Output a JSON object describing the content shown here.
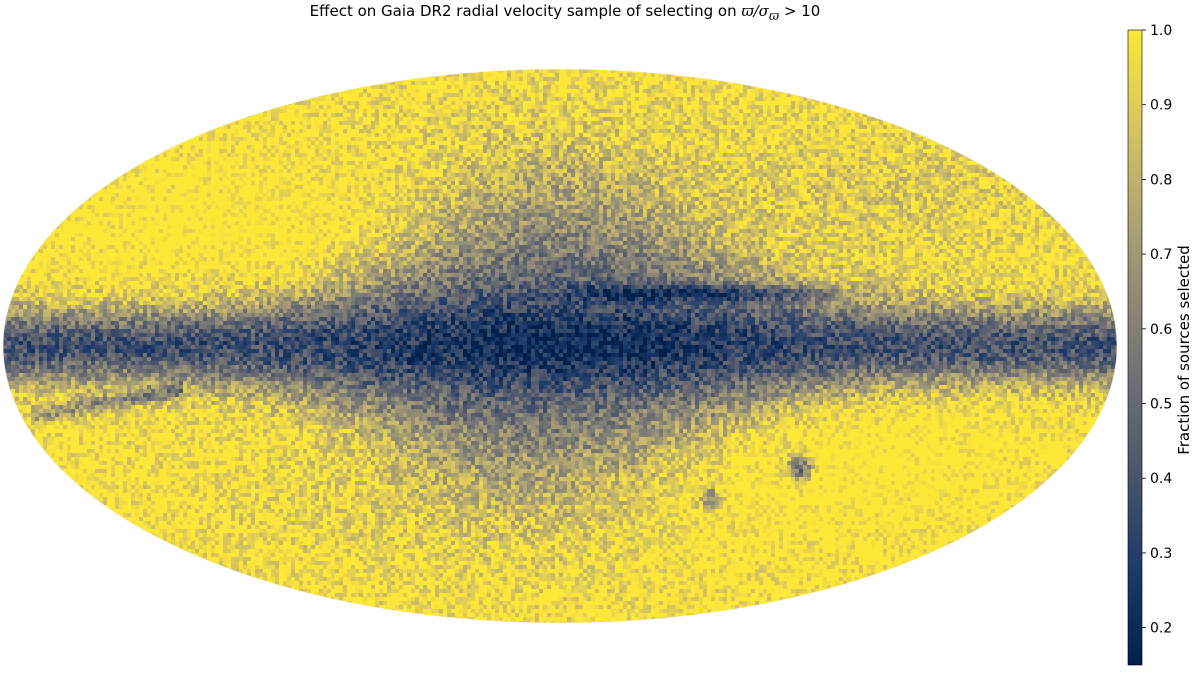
{
  "chart_data": {
    "type": "heatmap",
    "projection": "mollweide",
    "title_prefix": "Effect on Gaia DR2 radial velocity sample of selecting on ",
    "title_math": "ϖ/σ",
    "title_math_sub": "ϖ",
    "title_suffix": " > 10",
    "colorbar": {
      "label": "Fraction of sources selected",
      "range": [
        0.15,
        1.0
      ],
      "ticks": [
        "0.2",
        "0.3",
        "0.4",
        "0.5",
        "0.6",
        "0.7",
        "0.8",
        "0.9",
        "1.0"
      ],
      "colormap": [
        "#00204c",
        "#213d6b",
        "#555b6c",
        "#7b7a77",
        "#a59c74",
        "#d3c164",
        "#fde737"
      ]
    }
  }
}
